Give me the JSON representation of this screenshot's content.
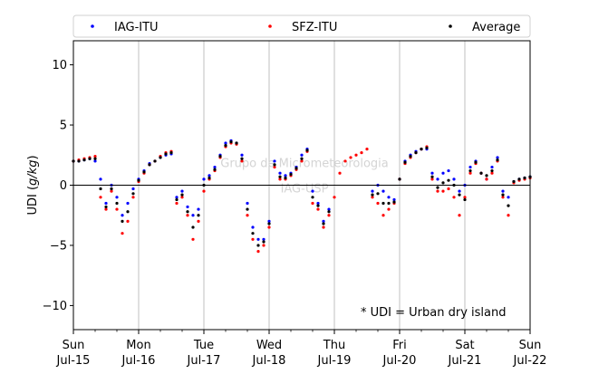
{
  "chart_data": {
    "type": "scatter",
    "ylabel": "UDI (g/kg)",
    "ylabel_parts": [
      "UDI (",
      "g/kg",
      ")"
    ],
    "xlim": [
      "2018-07-15",
      "2018-07-22"
    ],
    "ylim": [
      -12,
      12
    ],
    "yticks": [
      -10,
      -5,
      0,
      5,
      10
    ],
    "ytick_labels": [
      "−10",
      "−5",
      "0",
      "5",
      "10"
    ],
    "xticks": [
      {
        "date": "2018-07-15",
        "day": "Sun",
        "label": "Jul-15"
      },
      {
        "date": "2018-07-16",
        "day": "Mon",
        "label": "Jul-16"
      },
      {
        "date": "2018-07-17",
        "day": "Tue",
        "label": "Jul-17"
      },
      {
        "date": "2018-07-18",
        "day": "Wed",
        "label": "Jul-18"
      },
      {
        "date": "2018-07-19",
        "day": "Thu",
        "label": "Jul-19"
      },
      {
        "date": "2018-07-20",
        "day": "Fri",
        "label": "Jul-20"
      },
      {
        "date": "2018-07-21",
        "day": "Sat",
        "label": "Jul-21"
      },
      {
        "date": "2018-07-22",
        "day": "Sun",
        "label": "Jul-22"
      }
    ],
    "minor_ticks_per_day": 2,
    "grid": "vertical at major ticks",
    "zero_line": true,
    "legend_position": "top, outside, spanning width",
    "annotation": "* UDI = Urban dry island",
    "watermark": [
      "Grupo de Micrometeorologia",
      "IAG-USP"
    ],
    "colors": {
      "IAG-ITU": "#0000ff",
      "SFZ-ITU": "#ff0000",
      "Average": "#000000"
    },
    "series": [
      {
        "name": "IAG-ITU",
        "x": [
          "2018-07-15 00:00",
          "2018-07-15 02:00",
          "2018-07-15 04:00",
          "2018-07-15 06:00",
          "2018-07-15 08:00",
          "2018-07-15 10:00",
          "2018-07-15 12:00",
          "2018-07-15 14:00",
          "2018-07-15 16:00",
          "2018-07-15 18:00",
          "2018-07-15 20:00",
          "2018-07-15 22:00",
          "2018-07-16 00:00",
          "2018-07-16 02:00",
          "2018-07-16 04:00",
          "2018-07-16 06:00",
          "2018-07-16 08:00",
          "2018-07-16 10:00",
          "2018-07-16 12:00",
          "2018-07-16 14:00",
          "2018-07-16 16:00",
          "2018-07-16 18:00",
          "2018-07-16 20:00",
          "2018-07-16 22:00",
          "2018-07-17 00:00",
          "2018-07-17 02:00",
          "2018-07-17 04:00",
          "2018-07-17 06:00",
          "2018-07-17 08:00",
          "2018-07-17 10:00",
          "2018-07-17 12:00",
          "2018-07-17 14:00",
          "2018-07-17 16:00",
          "2018-07-17 18:00",
          "2018-07-17 20:00",
          "2018-07-17 22:00",
          "2018-07-18 00:00",
          "2018-07-18 02:00",
          "2018-07-18 04:00",
          "2018-07-18 06:00",
          "2018-07-18 08:00",
          "2018-07-18 10:00",
          "2018-07-18 12:00",
          "2018-07-18 14:00",
          "2018-07-18 16:00",
          "2018-07-18 18:00",
          "2018-07-18 20:00",
          "2018-07-18 22:00",
          "2018-07-19 14:00",
          "2018-07-19 16:00",
          "2018-07-19 18:00",
          "2018-07-19 20:00",
          "2018-07-19 22:00",
          "2018-07-20 00:00",
          "2018-07-20 02:00",
          "2018-07-20 04:00",
          "2018-07-20 06:00",
          "2018-07-20 08:00",
          "2018-07-20 10:00",
          "2018-07-20 12:00",
          "2018-07-20 14:00",
          "2018-07-20 16:00",
          "2018-07-20 18:00",
          "2018-07-20 20:00",
          "2018-07-20 22:00",
          "2018-07-21 00:00",
          "2018-07-21 02:00",
          "2018-07-21 04:00",
          "2018-07-21 06:00",
          "2018-07-21 08:00",
          "2018-07-21 10:00",
          "2018-07-21 12:00",
          "2018-07-21 14:00",
          "2018-07-21 16:00",
          "2018-07-21 18:00",
          "2018-07-21 20:00",
          "2018-07-21 22:00",
          "2018-07-22 00:00"
        ],
        "y": [
          2.0,
          2.0,
          2.1,
          2.2,
          2.0,
          0.5,
          -1.5,
          0.0,
          -1.0,
          -2.5,
          -1.5,
          -0.3,
          0.5,
          1.2,
          1.8,
          2.0,
          2.3,
          2.5,
          2.6,
          -1.0,
          -0.5,
          -1.8,
          -2.5,
          -2.0,
          0.5,
          0.8,
          1.5,
          2.5,
          3.5,
          3.7,
          3.5,
          2.5,
          -1.5,
          -3.5,
          -4.5,
          -4.5,
          -3.0,
          2.0,
          1.0,
          0.8,
          1.0,
          1.5,
          2.5,
          3.0,
          -0.5,
          -1.5,
          -3.0,
          -2.0,
          -0.5,
          0.0,
          -0.5,
          -1.0,
          -1.2,
          0.5,
          2.0,
          2.5,
          2.8,
          3.0,
          3.0,
          1.0,
          0.5,
          1.0,
          1.2,
          0.5,
          -0.5,
          0.0,
          1.5,
          2.0,
          1.0,
          0.5,
          1.5,
          2.3,
          -0.5,
          -1.0,
          0.3,
          0.5,
          0.6,
          0.7
        ]
      },
      {
        "name": "SFZ-ITU",
        "x": [
          "2018-07-15 00:00",
          "2018-07-15 02:00",
          "2018-07-15 04:00",
          "2018-07-15 06:00",
          "2018-07-15 08:00",
          "2018-07-15 10:00",
          "2018-07-15 12:00",
          "2018-07-15 14:00",
          "2018-07-15 16:00",
          "2018-07-15 18:00",
          "2018-07-15 20:00",
          "2018-07-15 22:00",
          "2018-07-16 00:00",
          "2018-07-16 02:00",
          "2018-07-16 04:00",
          "2018-07-16 06:00",
          "2018-07-16 08:00",
          "2018-07-16 10:00",
          "2018-07-16 12:00",
          "2018-07-16 14:00",
          "2018-07-16 16:00",
          "2018-07-16 18:00",
          "2018-07-16 20:00",
          "2018-07-16 22:00",
          "2018-07-17 00:00",
          "2018-07-17 02:00",
          "2018-07-17 04:00",
          "2018-07-17 06:00",
          "2018-07-17 08:00",
          "2018-07-17 10:00",
          "2018-07-17 12:00",
          "2018-07-17 14:00",
          "2018-07-17 16:00",
          "2018-07-17 18:00",
          "2018-07-17 20:00",
          "2018-07-17 22:00",
          "2018-07-18 00:00",
          "2018-07-18 02:00",
          "2018-07-18 04:00",
          "2018-07-18 06:00",
          "2018-07-18 08:00",
          "2018-07-18 10:00",
          "2018-07-18 12:00",
          "2018-07-18 14:00",
          "2018-07-18 16:00",
          "2018-07-18 18:00",
          "2018-07-18 20:00",
          "2018-07-18 22:00",
          "2018-07-19 00:00",
          "2018-07-19 02:00",
          "2018-07-19 04:00",
          "2018-07-19 06:00",
          "2018-07-19 08:00",
          "2018-07-19 10:00",
          "2018-07-19 12:00",
          "2018-07-19 14:00",
          "2018-07-19 16:00",
          "2018-07-19 18:00",
          "2018-07-19 20:00",
          "2018-07-19 22:00",
          "2018-07-20 00:00",
          "2018-07-20 02:00",
          "2018-07-20 04:00",
          "2018-07-20 06:00",
          "2018-07-20 08:00",
          "2018-07-20 10:00",
          "2018-07-20 12:00",
          "2018-07-20 14:00",
          "2018-07-20 16:00",
          "2018-07-20 18:00",
          "2018-07-20 20:00",
          "2018-07-20 22:00",
          "2018-07-21 00:00",
          "2018-07-21 02:00",
          "2018-07-21 04:00",
          "2018-07-21 06:00",
          "2018-07-21 08:00",
          "2018-07-21 10:00",
          "2018-07-21 12:00",
          "2018-07-21 14:00",
          "2018-07-21 16:00",
          "2018-07-21 18:00",
          "2018-07-21 20:00",
          "2018-07-21 22:00",
          "2018-07-22 00:00"
        ],
        "y": [
          2.0,
          2.1,
          2.2,
          2.3,
          2.4,
          -1.0,
          -2.0,
          -0.5,
          -2.0,
          -4.0,
          -3.0,
          -1.0,
          0.3,
          1.0,
          1.7,
          2.0,
          2.4,
          2.7,
          2.8,
          -1.5,
          -1.0,
          -2.5,
          -4.5,
          -3.0,
          -0.5,
          0.5,
          1.2,
          2.3,
          3.2,
          3.5,
          3.4,
          2.0,
          -2.5,
          -4.5,
          -5.5,
          -5.0,
          -3.5,
          1.5,
          0.5,
          0.5,
          0.8,
          1.3,
          2.0,
          2.8,
          -1.5,
          -2.0,
          -3.5,
          -2.5,
          -1.0,
          1.0,
          2.0,
          2.3,
          2.5,
          2.7,
          3.0,
          -1.0,
          -1.5,
          -2.5,
          -2.0,
          -1.5,
          0.5,
          1.8,
          2.3,
          2.7,
          3.0,
          3.2,
          0.5,
          -0.5,
          -0.5,
          -0.3,
          -1.0,
          -2.5,
          -1.0,
          1.0,
          1.8,
          1.0,
          0.5,
          1.0,
          2.0,
          -1.0,
          -2.5,
          0.2,
          0.4,
          0.5,
          0.6
        ]
      },
      {
        "name": "Average",
        "x": [
          "2018-07-15 00:00",
          "2018-07-15 02:00",
          "2018-07-15 04:00",
          "2018-07-15 06:00",
          "2018-07-15 08:00",
          "2018-07-15 10:00",
          "2018-07-15 12:00",
          "2018-07-15 14:00",
          "2018-07-15 16:00",
          "2018-07-15 18:00",
          "2018-07-15 20:00",
          "2018-07-15 22:00",
          "2018-07-16 00:00",
          "2018-07-16 02:00",
          "2018-07-16 04:00",
          "2018-07-16 06:00",
          "2018-07-16 08:00",
          "2018-07-16 10:00",
          "2018-07-16 12:00",
          "2018-07-16 14:00",
          "2018-07-16 16:00",
          "2018-07-16 18:00",
          "2018-07-16 20:00",
          "2018-07-16 22:00",
          "2018-07-17 00:00",
          "2018-07-17 02:00",
          "2018-07-17 04:00",
          "2018-07-17 06:00",
          "2018-07-17 08:00",
          "2018-07-17 10:00",
          "2018-07-17 12:00",
          "2018-07-17 14:00",
          "2018-07-17 16:00",
          "2018-07-17 18:00",
          "2018-07-17 20:00",
          "2018-07-17 22:00",
          "2018-07-18 00:00",
          "2018-07-18 02:00",
          "2018-07-18 04:00",
          "2018-07-18 06:00",
          "2018-07-18 08:00",
          "2018-07-18 10:00",
          "2018-07-18 12:00",
          "2018-07-18 14:00",
          "2018-07-18 16:00",
          "2018-07-18 18:00",
          "2018-07-18 20:00",
          "2018-07-18 22:00",
          "2018-07-19 14:00",
          "2018-07-19 16:00",
          "2018-07-19 18:00",
          "2018-07-19 20:00",
          "2018-07-19 22:00",
          "2018-07-20 00:00",
          "2018-07-20 02:00",
          "2018-07-20 04:00",
          "2018-07-20 06:00",
          "2018-07-20 08:00",
          "2018-07-20 10:00",
          "2018-07-20 12:00",
          "2018-07-20 14:00",
          "2018-07-20 16:00",
          "2018-07-20 18:00",
          "2018-07-20 20:00",
          "2018-07-20 22:00",
          "2018-07-21 00:00",
          "2018-07-21 02:00",
          "2018-07-21 04:00",
          "2018-07-21 06:00",
          "2018-07-21 08:00",
          "2018-07-21 10:00",
          "2018-07-21 12:00",
          "2018-07-21 14:00",
          "2018-07-21 16:00",
          "2018-07-21 18:00",
          "2018-07-21 20:00",
          "2018-07-21 22:00",
          "2018-07-22 00:00"
        ],
        "y": [
          2.0,
          2.0,
          2.1,
          2.2,
          2.2,
          -0.3,
          -1.8,
          -0.3,
          -1.5,
          -3.0,
          -2.2,
          -0.7,
          0.4,
          1.1,
          1.7,
          2.0,
          2.3,
          2.6,
          2.7,
          -1.2,
          -0.8,
          -2.2,
          -3.5,
          -2.5,
          0.0,
          0.6,
          1.3,
          2.4,
          3.3,
          3.6,
          3.5,
          2.2,
          -2.0,
          -4.0,
          -5.0,
          -4.7,
          -3.2,
          1.7,
          0.7,
          0.6,
          0.9,
          1.4,
          2.2,
          2.9,
          -1.0,
          -1.7,
          -3.2,
          -2.2,
          -0.8,
          -0.7,
          -1.5,
          -1.5,
          -1.4,
          0.5,
          1.9,
          2.4,
          2.7,
          3.0,
          3.1,
          0.7,
          -0.2,
          0.2,
          0.4,
          0.0,
          -0.8,
          -1.2,
          1.2,
          1.9,
          1.0,
          0.8,
          1.2,
          2.1,
          -0.8,
          -1.7,
          0.3,
          0.5,
          0.6,
          0.7
        ]
      }
    ]
  }
}
